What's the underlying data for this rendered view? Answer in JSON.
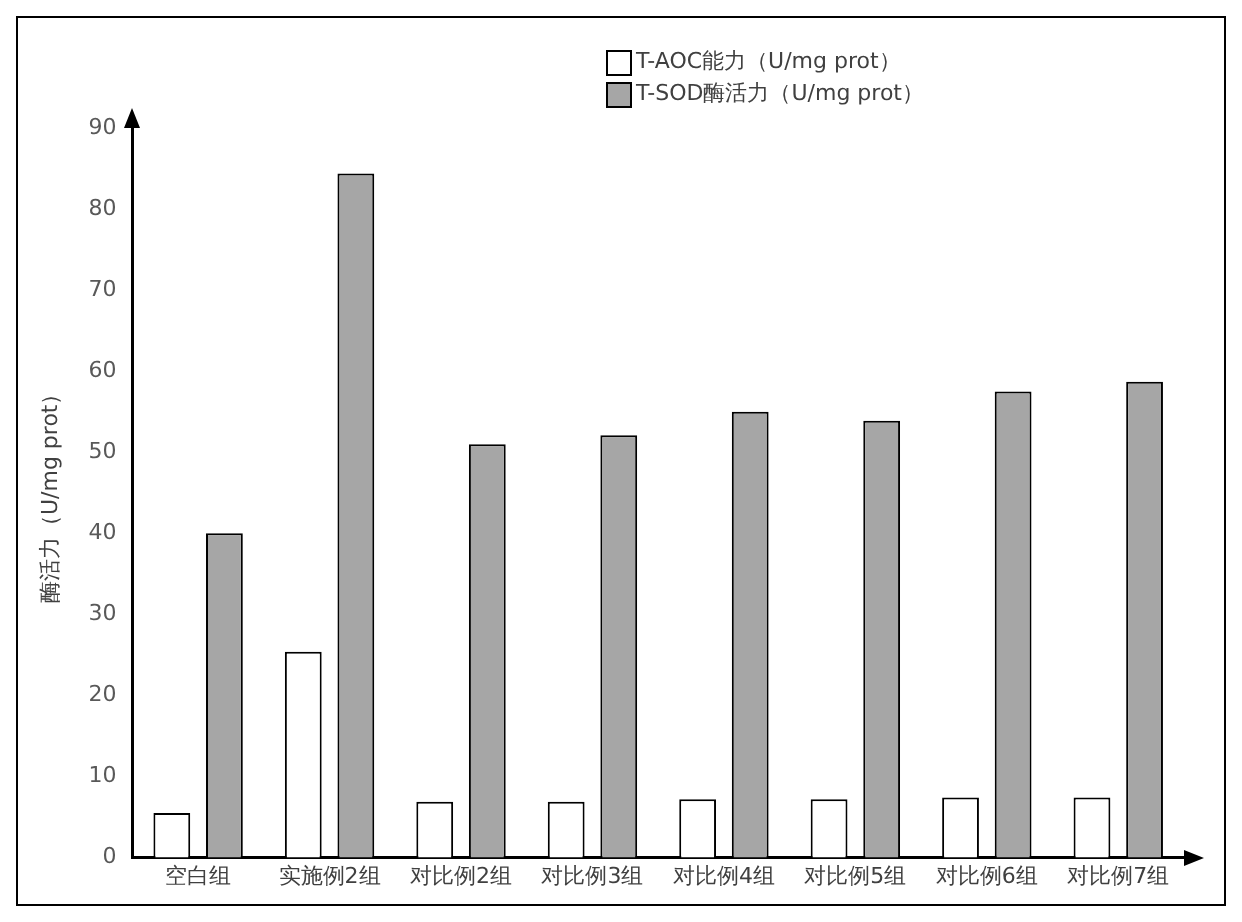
{
  "chart_data": {
    "type": "bar",
    "ylabel": "酶活力（U/mg prot）",
    "categories": [
      "空白组",
      "实施例2组",
      "对比例2组",
      "对比例3组",
      "对比例4组",
      "对比例5组",
      "对比例6组",
      "对比例7组"
    ],
    "series": [
      {
        "name": "T-AOC能力（U/mg prot）",
        "color": "#ffffff",
        "values": [
          5.5,
          25.4,
          6.9,
          6.9,
          7.2,
          7.2,
          7.4,
          7.4
        ]
      },
      {
        "name": "T-SOD酶活力（U/mg prot）",
        "color": "#a6a6a6",
        "values": [
          40,
          84.4,
          51,
          52.1,
          55,
          53.9,
          57.5,
          58.7
        ]
      }
    ],
    "ylim": [
      0,
      90
    ],
    "yticks": [
      0,
      10,
      20,
      30,
      40,
      50,
      60,
      70,
      80,
      90
    ],
    "grid": false,
    "legend": "top right"
  }
}
